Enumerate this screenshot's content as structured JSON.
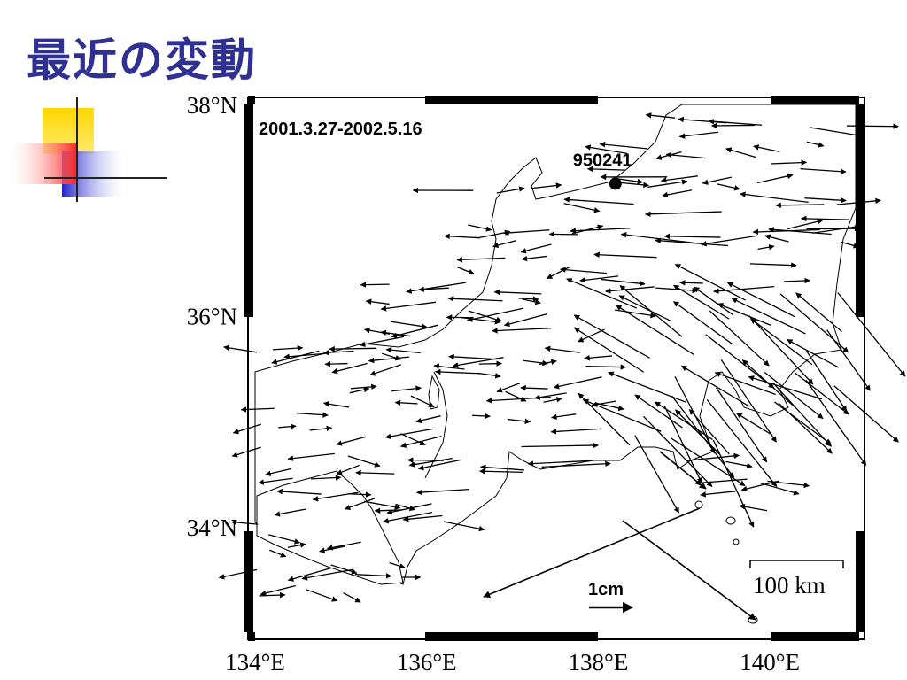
{
  "slide": {
    "title": "最近の変動",
    "title_color": "#2e3192"
  },
  "map": {
    "period": "2001.3.27-2002.5.16",
    "station": {
      "id": "950241",
      "lon": 138.2,
      "lat": 37.25
    },
    "extent": {
      "lon": [
        134,
        141
      ],
      "lat": [
        33,
        38
      ]
    },
    "lat_ticks": [
      {
        "lat": 38,
        "label": "38°N"
      },
      {
        "lat": 36,
        "label": "36°N"
      },
      {
        "lat": 34,
        "label": "34°N"
      }
    ],
    "lon_ticks": [
      {
        "lon": 134,
        "label": "134°E"
      },
      {
        "lon": 136,
        "label": "136°E"
      },
      {
        "lon": 138,
        "label": "138°E"
      },
      {
        "lon": 140,
        "label": "140°E"
      }
    ],
    "vector_scale_label": "1cm",
    "distance_scale_label": "100 km",
    "land_color": "#ffffff",
    "vector_color": "#000000"
  }
}
